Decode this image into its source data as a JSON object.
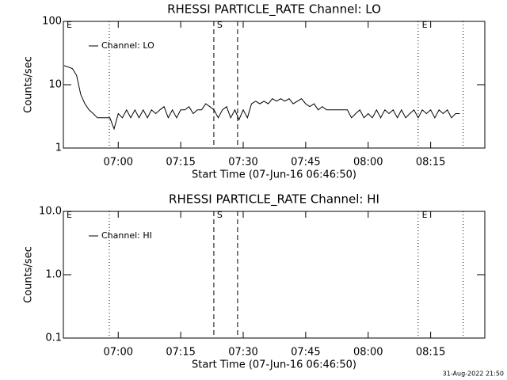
{
  "chart_data": [
    {
      "type": "line",
      "title": "RHESSI PARTICLE_RATE Channel: LO",
      "xlabel": "Start Time (07-Jun-16 06:46:50)",
      "ylabel": "Counts/sec",
      "log_y": true,
      "xlim": [
        406.83,
        508
      ],
      "xticks": [
        {
          "value": 420,
          "label": "07:00"
        },
        {
          "value": 435,
          "label": "07:15"
        },
        {
          "value": 450,
          "label": "07:30"
        },
        {
          "value": 465,
          "label": "07:45"
        },
        {
          "value": 480,
          "label": "08:00"
        },
        {
          "value": 495,
          "label": "08:15"
        }
      ],
      "ylim": [
        1,
        100
      ],
      "yticks": [
        1,
        10,
        100
      ],
      "legend": "upper left",
      "flags": [
        {
          "x": 417.86,
          "style": "dotted"
        },
        {
          "x": 442.95,
          "style": "dashed"
        },
        {
          "x": 448.65,
          "style": "dashed"
        },
        {
          "x": 492.0,
          "style": "dotted"
        },
        {
          "x": 502.8,
          "style": "dotted"
        }
      ],
      "flag_labels": [
        {
          "text": "E",
          "x": 407.6
        },
        {
          "text": "S",
          "x": 443.7
        },
        {
          "text": "E",
          "x": 492.9
        }
      ],
      "x": [
        407,
        408,
        409,
        410,
        411,
        412,
        413,
        414,
        415,
        416,
        417,
        418,
        419,
        420,
        421,
        422,
        423,
        424,
        425,
        426,
        427,
        428,
        429,
        430,
        431,
        432,
        433,
        434,
        435,
        436,
        437,
        438,
        439,
        440,
        441,
        442,
        443,
        444,
        445,
        446,
        447,
        448,
        449,
        450,
        451,
        452,
        453,
        454,
        455,
        456,
        457,
        458,
        459,
        460,
        461,
        462,
        463,
        464,
        465,
        466,
        467,
        468,
        469,
        470,
        471,
        472,
        473,
        474,
        475,
        476,
        477,
        478,
        479,
        480,
        481,
        482,
        483,
        484,
        485,
        486,
        487,
        488,
        489,
        490,
        491,
        492,
        493,
        494,
        495,
        496,
        497,
        498,
        499,
        500,
        501,
        502
      ],
      "series": [
        {
          "name": "Channel: LO",
          "color": "#000000",
          "values": [
            20,
            19,
            18,
            14,
            7,
            5,
            4,
            3.5,
            3,
            3,
            3,
            3,
            2,
            3.5,
            3,
            4,
            3,
            4,
            3,
            4,
            3,
            4,
            3.5,
            4,
            4.5,
            3,
            4,
            3,
            4,
            4,
            4.5,
            3.5,
            4,
            4,
            5,
            4.5,
            4,
            3,
            4,
            4.5,
            3,
            4,
            2.8,
            4,
            3,
            5,
            5.5,
            5,
            5.5,
            5,
            6,
            5.5,
            6,
            5.5,
            6,
            5,
            5.5,
            6,
            5,
            4.5,
            5,
            4,
            4.5,
            4,
            4,
            4,
            4,
            4,
            4,
            3,
            3.5,
            4,
            3,
            3.5,
            3,
            4,
            3,
            4,
            3.5,
            4,
            3,
            4,
            3,
            3.5,
            4,
            3,
            4,
            3.5,
            4,
            3,
            4,
            3.5,
            4,
            3,
            3.5,
            3.5
          ]
        }
      ]
    },
    {
      "type": "line",
      "title": "RHESSI PARTICLE_RATE Channel: HI",
      "xlabel": "Start Time (07-Jun-16 06:46:50)",
      "ylabel": "Counts/sec",
      "log_y": true,
      "xlim": [
        406.83,
        508
      ],
      "xticks": [
        {
          "value": 420,
          "label": "07:00"
        },
        {
          "value": 435,
          "label": "07:15"
        },
        {
          "value": 450,
          "label": "07:30"
        },
        {
          "value": 465,
          "label": "07:45"
        },
        {
          "value": 480,
          "label": "08:00"
        },
        {
          "value": 495,
          "label": "08:15"
        }
      ],
      "ylim": [
        0.1,
        10
      ],
      "yticks": [
        0.1,
        {
          "value": 1,
          "label": "1.0"
        },
        {
          "value": 10,
          "label": "10.0"
        }
      ],
      "legend": "upper left",
      "flags": [
        {
          "x": 417.86,
          "style": "dotted"
        },
        {
          "x": 442.95,
          "style": "dashed"
        },
        {
          "x": 448.65,
          "style": "dashed"
        },
        {
          "x": 492.0,
          "style": "dotted"
        },
        {
          "x": 502.8,
          "style": "dotted"
        }
      ],
      "flag_labels": [
        {
          "text": "E",
          "x": 407.6
        },
        {
          "text": "S",
          "x": 443.7
        },
        {
          "text": "E",
          "x": 492.9
        }
      ],
      "x": [],
      "series": [
        {
          "name": "Channel: HI",
          "color": "#000000",
          "values": []
        }
      ]
    }
  ],
  "timestamp": "31-Aug-2022 21:50"
}
